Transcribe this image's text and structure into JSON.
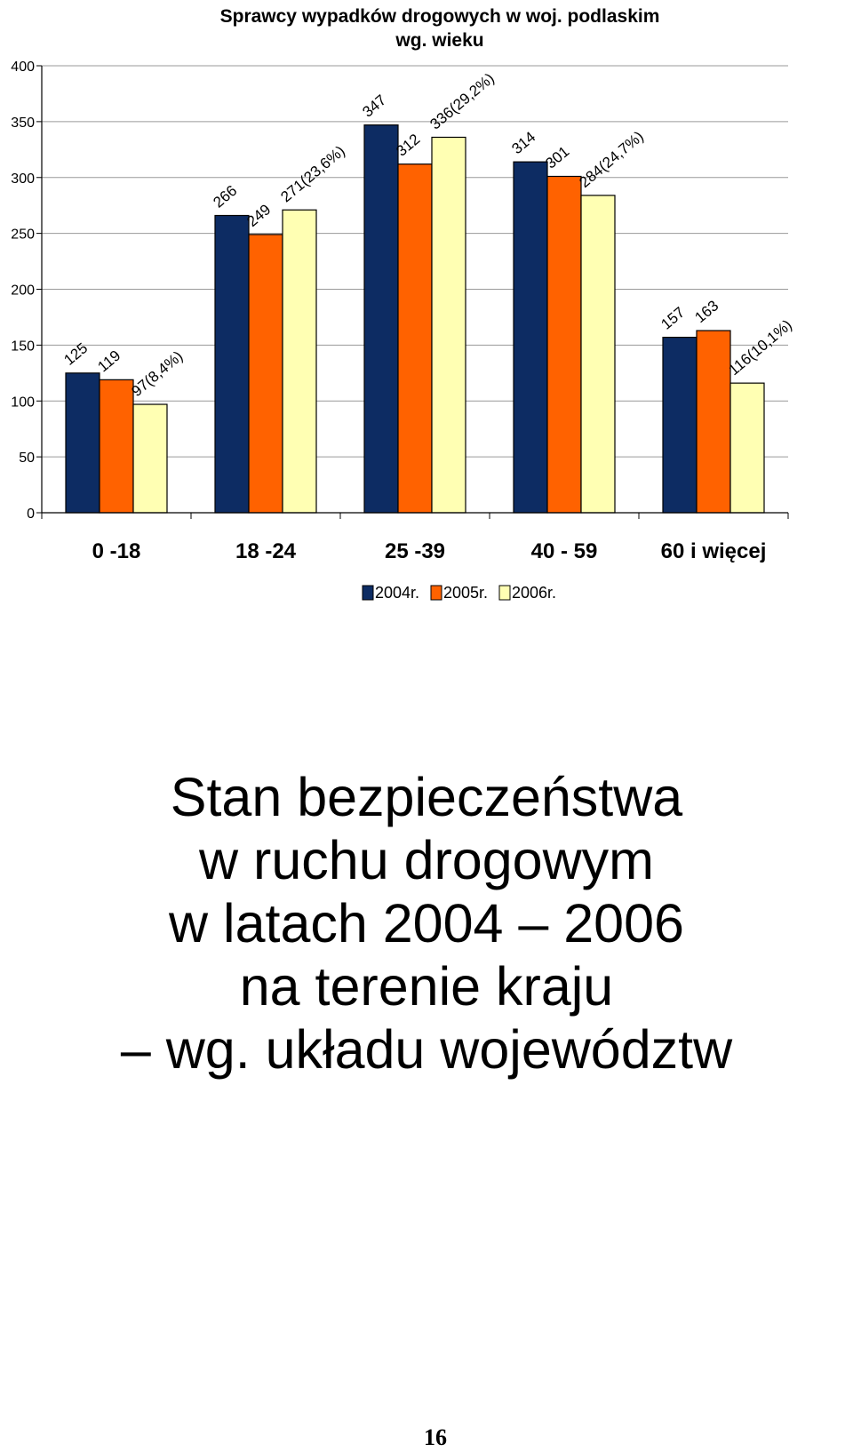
{
  "chart_data": {
    "type": "bar",
    "title": [
      "Sprawcy wypadków drogowych w woj. podlaskim",
      "wg. wieku"
    ],
    "categories": [
      "0 -18",
      "18 -24",
      "25 -39",
      "40 - 59",
      "60 i więcej"
    ],
    "series": [
      {
        "name": "2004r.",
        "color": "#0d2c63",
        "values": [
          125,
          266,
          347,
          314,
          157
        ],
        "labels": [
          "125",
          "266",
          "347",
          "314",
          "157"
        ]
      },
      {
        "name": "2005r.",
        "color": "#ff6200",
        "values": [
          119,
          249,
          312,
          301,
          163
        ],
        "labels": [
          "119",
          "249",
          "312",
          "301",
          "163"
        ]
      },
      {
        "name": "2006r.",
        "color": "#ffffb3",
        "values": [
          97,
          271,
          336,
          284,
          116
        ],
        "labels": [
          "97(8,4%)",
          "271(23,6%)",
          "336(29,2%)",
          "284(24,7%)",
          "116(10,1%)"
        ]
      }
    ],
    "ylim": [
      0,
      400
    ],
    "yticks": [
      0,
      50,
      100,
      150,
      200,
      250,
      300,
      350,
      400
    ],
    "grid": true,
    "legend_position": "bottom-center"
  },
  "slide": {
    "heading_lines": [
      "Stan bezpieczeństwa",
      "w ruchu drogowym",
      "w latach 2004 – 2006",
      "na terenie kraju",
      "– wg. układu województw"
    ]
  },
  "page_number": "16"
}
